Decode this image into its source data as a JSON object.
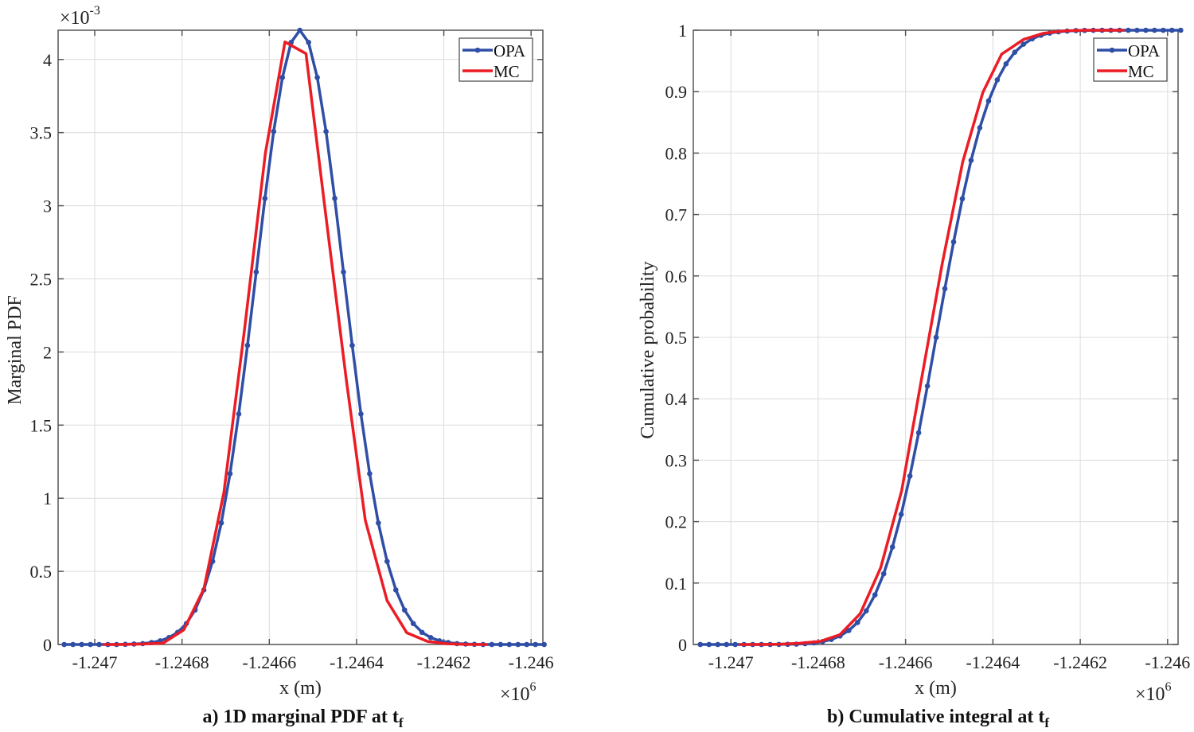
{
  "colors": {
    "opa": "#2f4ea6",
    "mc": "#ec1c24",
    "grid": "#dcdcdc",
    "axis": "#555555"
  },
  "chart_data": [
    {
      "type": "line",
      "title": "a) 1D marginal PDF at t",
      "title_sub": "f",
      "xlabel": "x (m)",
      "ylabel": "Marginal PDF",
      "x_multiplier_label": "×10",
      "x_multiplier_exp": "6",
      "y_multiplier_label": "×10",
      "y_multiplier_exp": "-3",
      "xlim": [
        -1247084,
        -1245973
      ],
      "ylim": [
        0,
        4.2
      ],
      "x_ticks": [
        -1247000,
        -1246800,
        -1246600,
        -1246400,
        -1246200,
        -1246000
      ],
      "x_tick_labels": [
        "-1.247",
        "-1.2468",
        "-1.2466",
        "-1.2464",
        "-1.2462",
        "-1.246"
      ],
      "y_ticks": [
        0,
        0.5,
        1,
        1.5,
        2,
        2.5,
        3,
        3.5,
        4
      ],
      "y_tick_labels": [
        "0",
        "0.5",
        "1",
        "1.5",
        "2",
        "2.5",
        "3",
        "3.5",
        "4"
      ],
      "grid": true,
      "legend": {
        "position": "top-right",
        "entries": [
          "OPA",
          "MC"
        ]
      },
      "series": [
        {
          "name": "OPA",
          "marker": "circle",
          "x": [
            -1247070,
            -1247050,
            -1247030,
            -1247010,
            -1246990,
            -1246970,
            -1246950,
            -1246930,
            -1246910,
            -1246890,
            -1246870,
            -1246850,
            -1246830,
            -1246810,
            -1246790,
            -1246770,
            -1246750,
            -1246730,
            -1246710,
            -1246690,
            -1246670,
            -1246650,
            -1246630,
            -1246610,
            -1246590,
            -1246570,
            -1246550,
            -1246530,
            -1246510,
            -1246490,
            -1246470,
            -1246450,
            -1246430,
            -1246410,
            -1246390,
            -1246370,
            -1246350,
            -1246330,
            -1246310,
            -1246290,
            -1246270,
            -1246250,
            -1246230,
            -1246210,
            -1246190,
            -1246170,
            -1246150,
            -1246130,
            -1246110,
            -1246090,
            -1246070,
            -1246050,
            -1246030,
            -1246010,
            -1245990,
            -1245970
          ],
          "values": [
            0,
            0,
            0,
            0,
            0,
            0,
            0,
            0.001,
            0.003,
            0.006,
            0.013,
            0.025,
            0.047,
            0.083,
            0.143,
            0.236,
            0.373,
            0.568,
            0.831,
            1.168,
            1.576,
            2.045,
            2.547,
            3.05,
            3.508,
            3.877,
            4.117,
            4.2,
            4.117,
            3.877,
            3.508,
            3.05,
            2.547,
            2.045,
            1.576,
            1.168,
            0.831,
            0.568,
            0.373,
            0.236,
            0.143,
            0.083,
            0.047,
            0.025,
            0.013,
            0.006,
            0.003,
            0.001,
            0,
            0,
            0,
            0,
            0,
            0,
            0,
            0
          ]
        },
        {
          "name": "MC",
          "marker": "none",
          "x": [
            -1246982,
            -1246934,
            -1246889,
            -1246843,
            -1246796,
            -1246750,
            -1246704,
            -1246657,
            -1246609,
            -1246564,
            -1246516,
            -1246469,
            -1246423,
            -1246380,
            -1246330,
            -1246285,
            -1246237,
            -1246192,
            -1246144,
            -1246099
          ],
          "values": [
            0,
            0,
            0.003,
            0.01,
            0.1,
            0.38,
            1.04,
            2.15,
            3.36,
            4.12,
            4.04,
            2.9,
            1.8,
            0.85,
            0.3,
            0.08,
            0.02,
            0.005,
            0,
            0
          ]
        }
      ]
    },
    {
      "type": "line",
      "title": "b) Cumulative integral at t",
      "title_sub": "f",
      "xlabel": "x (m)",
      "ylabel": "Cumulative probability",
      "x_multiplier_label": "×10",
      "x_multiplier_exp": "6",
      "xlim": [
        -1247086,
        -1245976
      ],
      "ylim": [
        0,
        1
      ],
      "x_ticks": [
        -1247000,
        -1246800,
        -1246600,
        -1246400,
        -1246200,
        -1246000
      ],
      "x_tick_labels": [
        "-1.247",
        "-1.2468",
        "-1.2466",
        "-1.2464",
        "-1.2462",
        "-1.246"
      ],
      "y_ticks": [
        0,
        0.1,
        0.2,
        0.3,
        0.4,
        0.5,
        0.6,
        0.7,
        0.8,
        0.9,
        1
      ],
      "y_tick_labels": [
        "0",
        "0.1",
        "0.2",
        "0.3",
        "0.4",
        "0.5",
        "0.6",
        "0.7",
        "0.8",
        "0.9",
        "1"
      ],
      "grid": true,
      "legend": {
        "position": "top-right",
        "entries": [
          "OPA",
          "MC"
        ]
      },
      "series": [
        {
          "name": "OPA",
          "marker": "circle",
          "x": [
            -1247070,
            -1247050,
            -1247030,
            -1247010,
            -1246990,
            -1246970,
            -1246950,
            -1246930,
            -1246910,
            -1246890,
            -1246870,
            -1246850,
            -1246830,
            -1246810,
            -1246790,
            -1246770,
            -1246750,
            -1246730,
            -1246710,
            -1246690,
            -1246670,
            -1246650,
            -1246630,
            -1246610,
            -1246590,
            -1246570,
            -1246550,
            -1246530,
            -1246510,
            -1246490,
            -1246470,
            -1246450,
            -1246430,
            -1246410,
            -1246390,
            -1246370,
            -1246350,
            -1246330,
            -1246310,
            -1246290,
            -1246270,
            -1246250,
            -1246230,
            -1246210,
            -1246190,
            -1246170,
            -1246150,
            -1246130,
            -1246110,
            -1246090,
            -1246070,
            -1246050,
            -1246030,
            -1246010,
            -1245990,
            -1245970
          ],
          "values": [
            0,
            0,
            0,
            0,
            0,
            0,
            0,
            0,
            0,
            0.0001,
            0.0003,
            0.0006,
            0.0013,
            0.0026,
            0.0047,
            0.0082,
            0.0139,
            0.0228,
            0.0359,
            0.0548,
            0.0808,
            0.1151,
            0.1587,
            0.2119,
            0.2743,
            0.3446,
            0.4207,
            0.5,
            0.5793,
            0.6554,
            0.7257,
            0.7881,
            0.8413,
            0.8849,
            0.9192,
            0.9452,
            0.9641,
            0.9772,
            0.9861,
            0.9918,
            0.9953,
            0.9974,
            0.9987,
            0.9994,
            0.9997,
            0.9999,
            1,
            1,
            1,
            1,
            1,
            1,
            1,
            1,
            1,
            1
          ]
        },
        {
          "name": "MC",
          "marker": "none",
          "x": [
            -1246982,
            -1246934,
            -1246889,
            -1246843,
            -1246796,
            -1246750,
            -1246704,
            -1246657,
            -1246609,
            -1246564,
            -1246516,
            -1246469,
            -1246423,
            -1246380,
            -1246330,
            -1246285,
            -1246237,
            -1246192,
            -1246144,
            -1246099
          ],
          "values": [
            0,
            0,
            0.0005,
            0.002,
            0.005,
            0.016,
            0.05,
            0.125,
            0.25,
            0.43,
            0.62,
            0.786,
            0.899,
            0.961,
            0.985,
            0.995,
            0.999,
            1,
            1,
            1
          ]
        }
      ]
    }
  ]
}
